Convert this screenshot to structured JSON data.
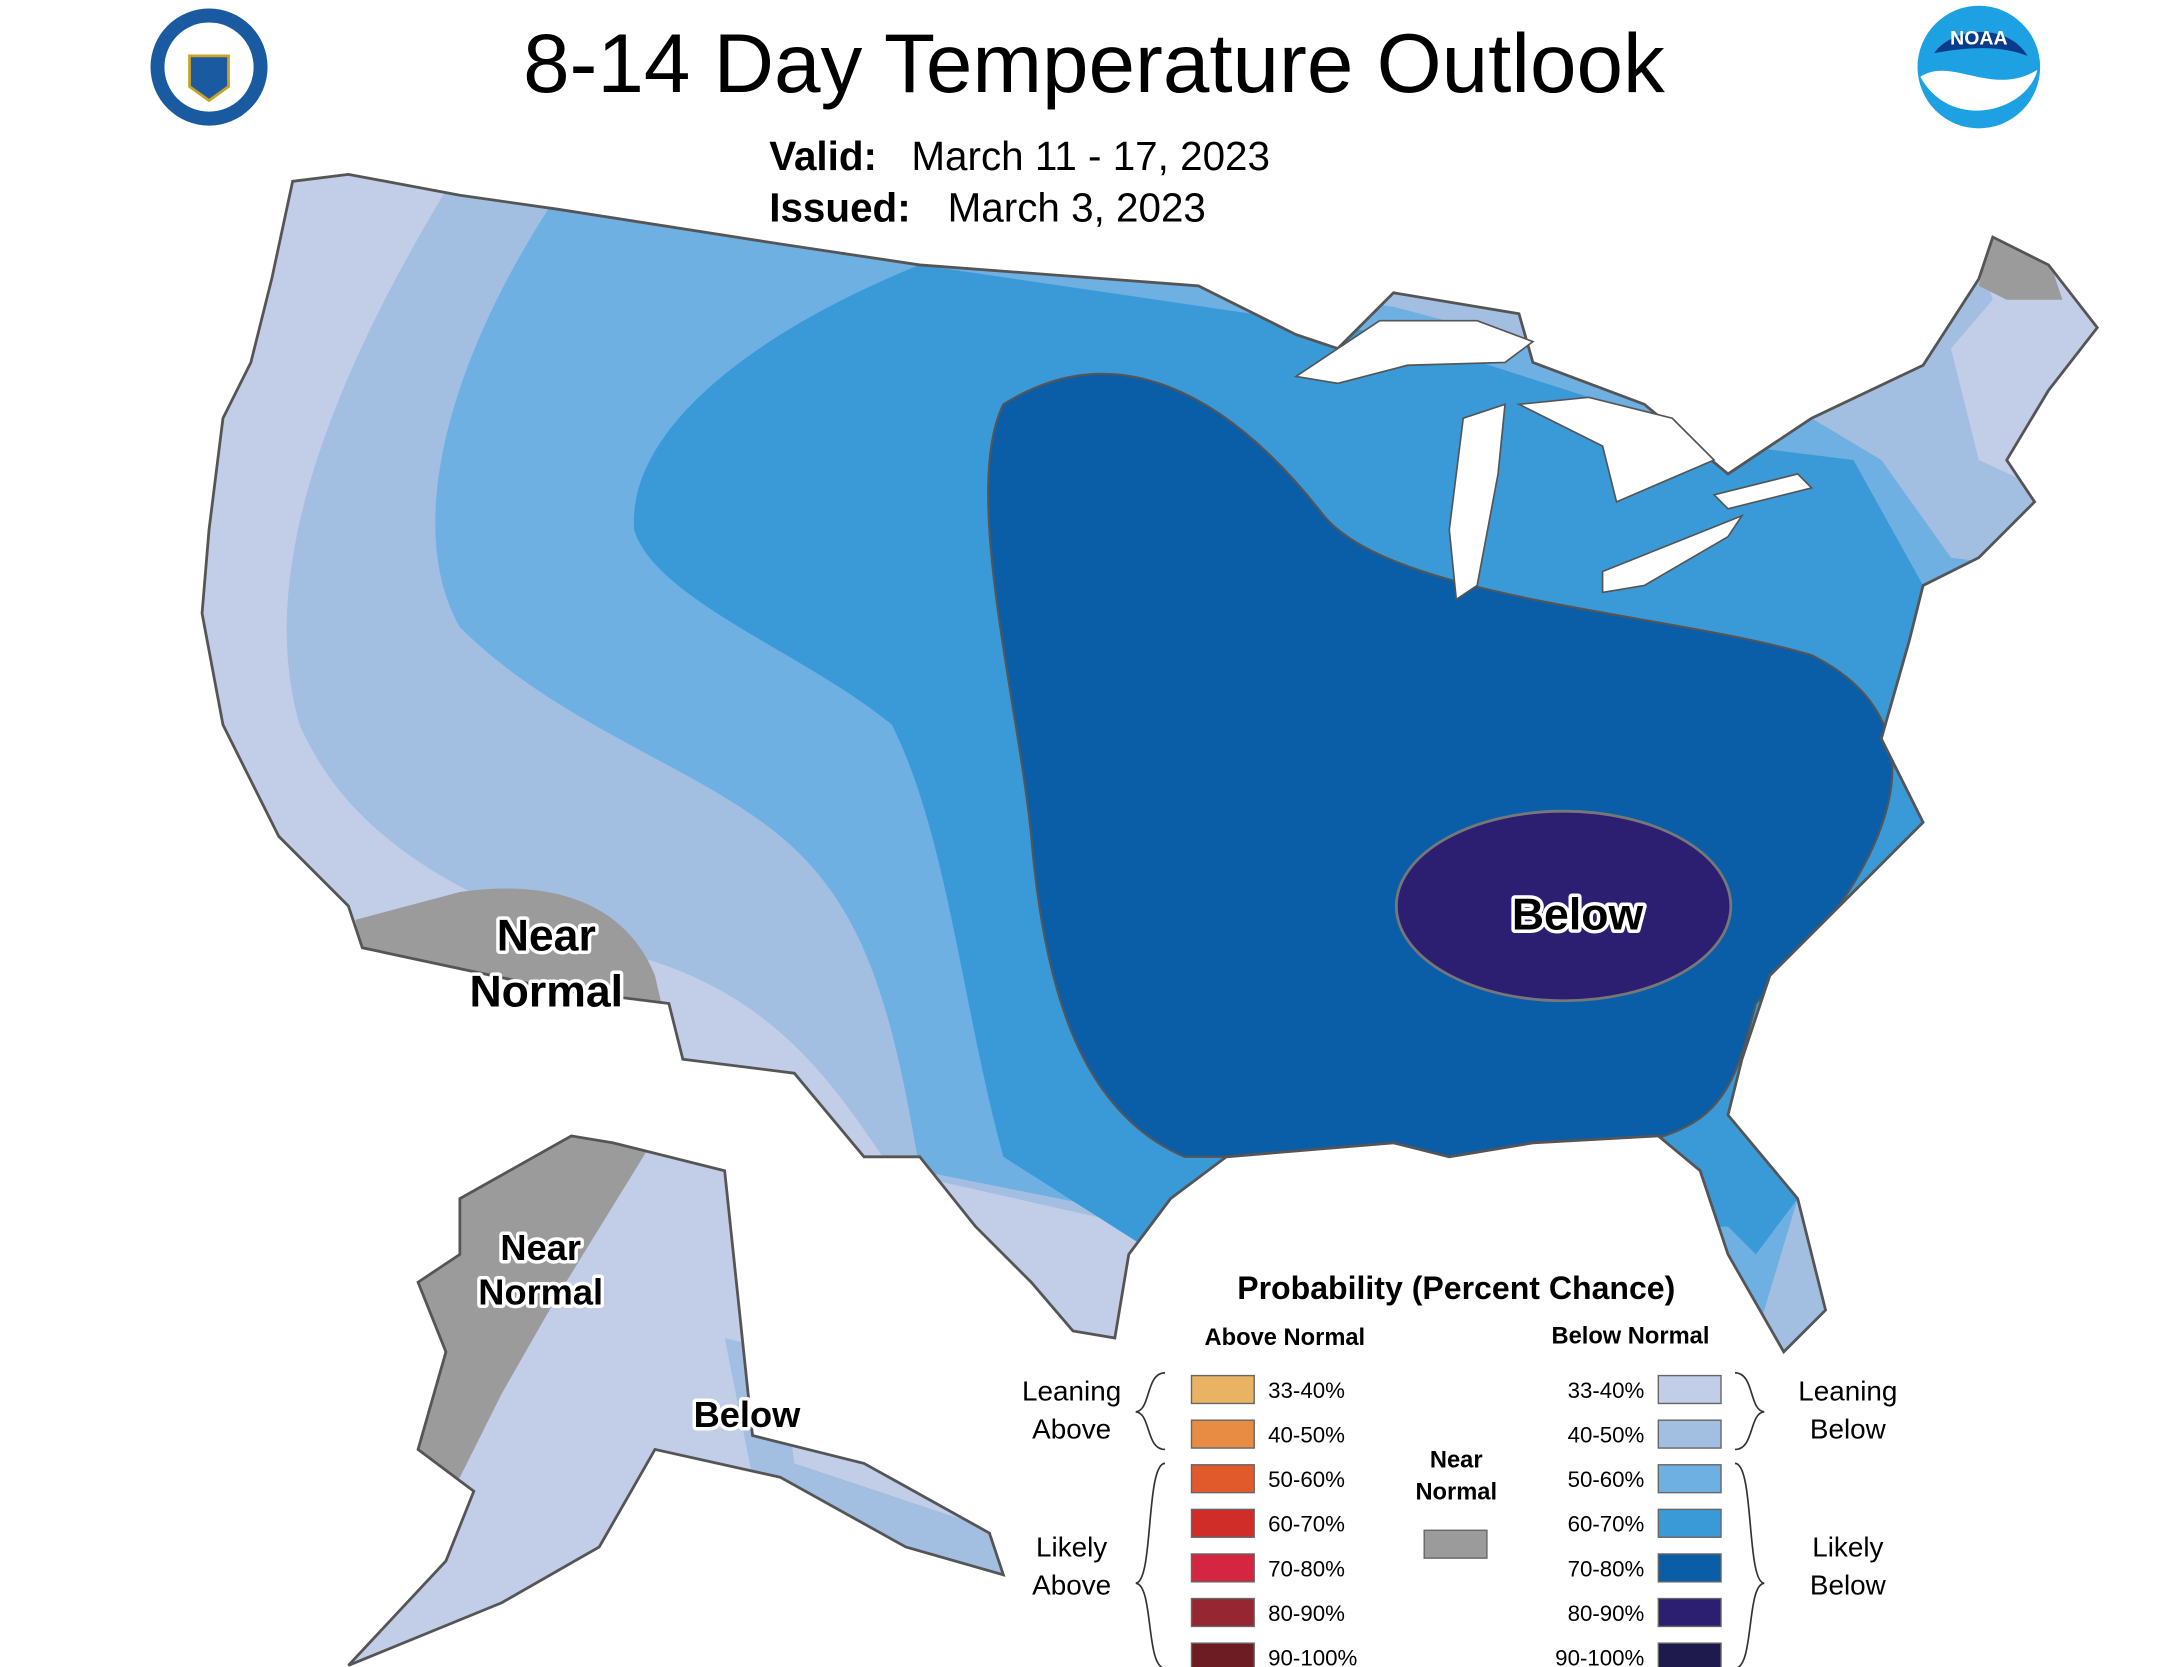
{
  "header": {
    "title": "8-14 Day Temperature Outlook",
    "valid_label": "Valid:",
    "valid_value": "March 11 - 17, 2023",
    "issued_label": "Issued:",
    "issued_value": "March 3, 2023",
    "left_seal": "Department of Commerce - United States of America",
    "right_logo": "NOAA"
  },
  "map_labels": {
    "conus_near_1": "Near",
    "conus_near_2": "Normal",
    "conus_below": "Below",
    "ak_near_1": "Near",
    "ak_near_2": "Normal",
    "ak_below": "Below"
  },
  "legend": {
    "title": "Probability (Percent Chance)",
    "above_header": "Above Normal",
    "below_header": "Below Normal",
    "leaning_above": [
      "Leaning",
      "Above"
    ],
    "likely_above": [
      "Likely",
      "Above"
    ],
    "leaning_below": [
      "Leaning",
      "Below"
    ],
    "likely_below": [
      "Likely",
      "Below"
    ],
    "near_normal": [
      "Near",
      "Normal"
    ],
    "near_normal_color": "#9b9b9b",
    "above": [
      {
        "label": "33-40%",
        "color": "#e8b464"
      },
      {
        "label": "40-50%",
        "color": "#e88c44"
      },
      {
        "label": "50-60%",
        "color": "#e05a2c"
      },
      {
        "label": "60-70%",
        "color": "#d02c28"
      },
      {
        "label": "70-80%",
        "color": "#d42640"
      },
      {
        "label": "80-90%",
        "color": "#962632"
      },
      {
        "label": "90-100%",
        "color": "#6c1c22"
      }
    ],
    "below": [
      {
        "label": "33-40%",
        "color": "#c2cde8"
      },
      {
        "label": "40-50%",
        "color": "#a2bfe2"
      },
      {
        "label": "50-60%",
        "color": "#6eb0e2"
      },
      {
        "label": "60-70%",
        "color": "#3a9ad8"
      },
      {
        "label": "70-80%",
        "color": "#0a5ea8"
      },
      {
        "label": "80-90%",
        "color": "#2c1f72"
      },
      {
        "label": "90-100%",
        "color": "#1e1a4e"
      }
    ]
  }
}
